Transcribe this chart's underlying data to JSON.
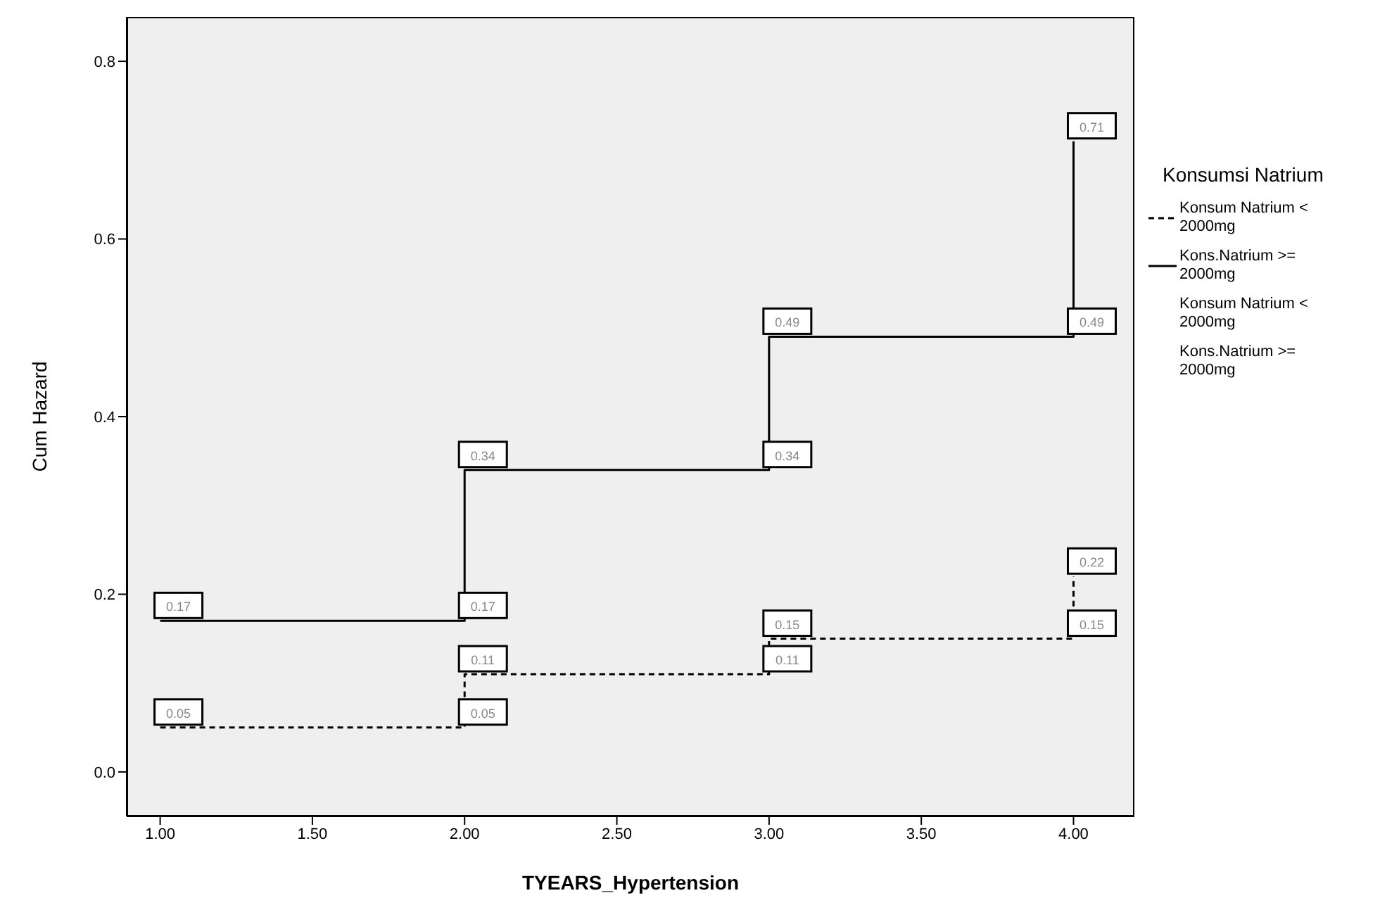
{
  "chart_data": {
    "type": "line",
    "xlabel": "TYEARS_Hypertension",
    "ylabel": "Cum Hazard",
    "legend_title": "Konsumsi Natrium",
    "legend": "right",
    "data_labels": true,
    "marker": "none",
    "xlim": [
      0.89,
      4.2
    ],
    "xticks": [
      {
        "value": 1,
        "label": "1.00"
      },
      {
        "value": 1.5,
        "label": "1.50"
      },
      {
        "value": 2,
        "label": "2.00"
      },
      {
        "value": 2.5,
        "label": "2.50"
      },
      {
        "value": 3,
        "label": "3.00"
      },
      {
        "value": 3.5,
        "label": "3.50"
      },
      {
        "value": 4,
        "label": "4.00"
      }
    ],
    "ylim": [
      -0.05,
      0.85
    ],
    "yticks": [
      {
        "value": 0,
        "label": "0.0"
      },
      {
        "value": 0.2,
        "label": "0.2"
      },
      {
        "value": 0.4,
        "label": "0.4"
      },
      {
        "value": 0.6,
        "label": "0.6"
      },
      {
        "value": 0.8,
        "label": "0.8"
      }
    ],
    "series": [
      {
        "name": "Konsum Natrium < 2000mg",
        "color": "#000000",
        "line_style": "dashed",
        "x": [
          1,
          2,
          2,
          3,
          3,
          4,
          4
        ],
        "values": [
          0.05,
          0.05,
          0.11,
          0.11,
          0.15,
          0.15,
          0.22
        ]
      },
      {
        "name": "Kons.Natrium >= 2000mg",
        "color": "#000000",
        "line_style": "solid",
        "x": [
          1,
          2,
          2,
          3,
          3,
          4,
          4
        ],
        "values": [
          0.17,
          0.17,
          0.34,
          0.34,
          0.49,
          0.49,
          0.71
        ]
      },
      {
        "name": "Konsum Natrium < 2000mg"
      },
      {
        "name": "Kons.Natrium >= 2000mg"
      }
    ]
  }
}
